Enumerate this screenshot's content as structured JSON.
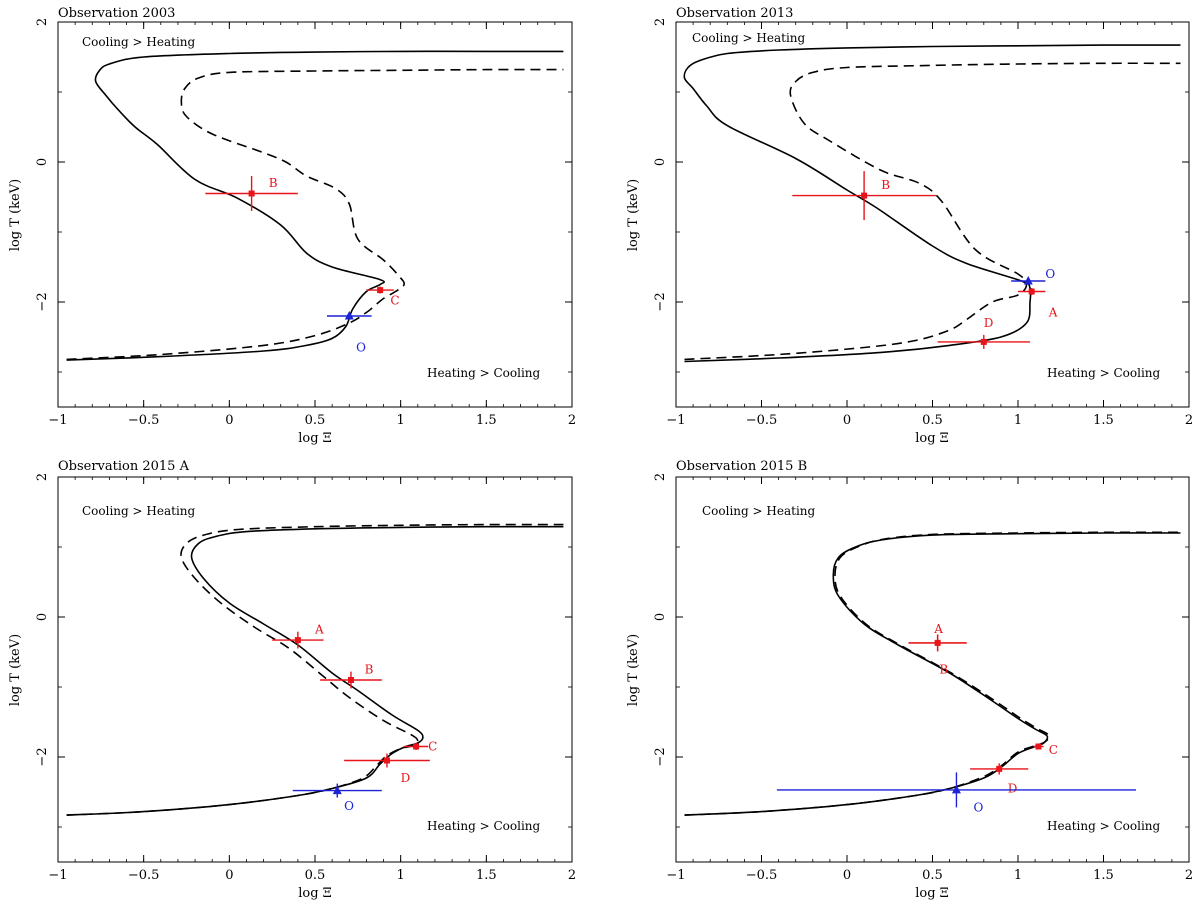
{
  "chart_data": [
    {
      "type": "line",
      "title": "Observation 2003",
      "xlabel": "log Ξ",
      "ylabel": "log T (keV)",
      "xlim": [
        -1,
        2
      ],
      "ylim": [
        -3.5,
        2
      ],
      "xticks": [
        "−1",
        "−0.5",
        "0",
        "0.5",
        "1",
        "1.5",
        "2"
      ],
      "yticks": [
        "−2",
        "0",
        "2"
      ],
      "annotations": {
        "top": "Cooling > Heating",
        "bottom": "Heating > Cooling"
      },
      "series": [
        {
          "name": "solid",
          "style": "solid",
          "x": [
            -0.95,
            -0.4,
            0.2,
            0.45,
            0.6,
            0.68,
            0.72,
            0.8,
            0.88,
            0.88,
            0.6,
            0.45,
            0.3,
            0.05,
            -0.2,
            -0.42,
            -0.55,
            -0.65,
            -0.72,
            -0.78,
            -0.76,
            -0.7,
            -0.5,
            0.0,
            0.5,
            1.0,
            1.5,
            1.95
          ],
          "y": [
            -2.83,
            -2.78,
            -2.7,
            -2.62,
            -2.52,
            -2.35,
            -2.1,
            -1.85,
            -1.75,
            -1.68,
            -1.5,
            -1.3,
            -0.9,
            -0.52,
            -0.25,
            0.25,
            0.5,
            0.75,
            0.95,
            1.15,
            1.3,
            1.4,
            1.5,
            1.55,
            1.57,
            1.58,
            1.58,
            1.58
          ]
        },
        {
          "name": "dashed",
          "style": "dashed",
          "x": [
            -0.95,
            -0.4,
            0.2,
            0.5,
            0.7,
            0.8,
            0.85,
            0.9,
            0.97,
            1.02,
            0.99,
            0.9,
            0.75,
            0.7,
            0.62,
            0.45,
            0.33,
            0.18,
            -0.1,
            -0.25,
            -0.28,
            -0.26,
            -0.18,
            0.0,
            0.5,
            1.0,
            1.5,
            1.95
          ],
          "y": [
            -2.82,
            -2.75,
            -2.62,
            -2.48,
            -2.3,
            -2.15,
            -2.05,
            -1.95,
            -1.85,
            -1.75,
            -1.63,
            -1.4,
            -1.1,
            -0.6,
            -0.38,
            -0.2,
            0.0,
            0.15,
            0.4,
            0.65,
            0.85,
            1.05,
            1.2,
            1.28,
            1.3,
            1.31,
            1.32,
            1.32
          ]
        }
      ],
      "points": [
        {
          "label": "B",
          "x": 0.13,
          "y": -0.45,
          "xerr": [
            0.27,
            0.27
          ],
          "yerr": [
            0.25,
            0.25
          ],
          "color": "#e8141a",
          "marker": "square",
          "label_dx": 0.1,
          "label_dy": 0.15
        },
        {
          "label": "C",
          "x": 0.88,
          "y": -1.83,
          "xerr": [
            0.08,
            0.08
          ],
          "yerr": [
            0.05,
            0.05
          ],
          "color": "#e8141a",
          "marker": "square",
          "label_dx": 0.06,
          "label_dy": -0.15
        },
        {
          "label": "O",
          "x": 0.7,
          "y": -2.2,
          "xerr": [
            0.13,
            0.13
          ],
          "yerr": [
            0.05,
            0.05
          ],
          "color": "#1c22d6",
          "marker": "triangle",
          "label_dx": 0.04,
          "label_dy": -0.45
        }
      ]
    },
    {
      "type": "line",
      "title": "Observation 2013",
      "xlabel": "log Ξ",
      "ylabel": "log T (keV)",
      "xlim": [
        -1,
        2
      ],
      "ylim": [
        -3.5,
        2
      ],
      "xticks": [
        "−1",
        "−0.5",
        "0",
        "0.5",
        "1",
        "1.5",
        "2"
      ],
      "yticks": [
        "−2",
        "0",
        "2"
      ],
      "annotations": {
        "top": "Cooling > Heating",
        "bottom": "Heating > Cooling"
      },
      "series": [
        {
          "name": "solid",
          "style": "solid",
          "x": [
            -0.95,
            -0.4,
            0.2,
            0.6,
            0.9,
            1.05,
            1.07,
            1.07,
            1.02,
            0.7,
            0.5,
            0.17,
            0.0,
            -0.3,
            -0.7,
            -0.82,
            -0.9,
            -0.95,
            -0.93,
            -0.86,
            -0.7,
            -0.4,
            0.0,
            0.5,
            1.0,
            1.5,
            1.95
          ],
          "y": [
            -2.85,
            -2.8,
            -2.72,
            -2.62,
            -2.5,
            -2.3,
            -2.0,
            -1.8,
            -1.7,
            -1.45,
            -1.2,
            -0.65,
            -0.4,
            0.05,
            0.52,
            0.8,
            1.05,
            1.2,
            1.35,
            1.45,
            1.55,
            1.6,
            1.63,
            1.65,
            1.66,
            1.67,
            1.67
          ]
        },
        {
          "name": "dashed",
          "style": "dashed",
          "x": [
            -0.95,
            -0.4,
            0.1,
            0.4,
            0.6,
            0.7,
            0.85,
            1.0,
            1.05,
            1.0,
            0.75,
            0.55,
            0.42,
            0.2,
            -0.1,
            -0.25,
            -0.33,
            -0.3,
            -0.2,
            0.0,
            0.5,
            1.0,
            1.5,
            1.95
          ],
          "y": [
            -2.82,
            -2.75,
            -2.65,
            -2.55,
            -2.4,
            -2.25,
            -2.0,
            -1.9,
            -1.75,
            -1.6,
            -1.25,
            -0.55,
            -0.3,
            -0.12,
            0.3,
            0.55,
            0.95,
            1.15,
            1.28,
            1.35,
            1.38,
            1.4,
            1.41,
            1.41
          ]
        }
      ],
      "points": [
        {
          "label": "B",
          "x": 0.1,
          "y": -0.48,
          "xerr": [
            0.42,
            0.42
          ],
          "yerr": [
            0.35,
            0.35
          ],
          "color": "#e8141a",
          "marker": "square",
          "label_dx": 0.1,
          "label_dy": 0.15
        },
        {
          "label": "O",
          "x": 1.06,
          "y": -1.7,
          "xerr": [
            0.1,
            0.1
          ],
          "yerr": [
            0.05,
            0.05
          ],
          "color": "#1c22d6",
          "marker": "triangle",
          "label_dx": 0.1,
          "label_dy": 0.1
        },
        {
          "label": "A",
          "x": 1.08,
          "y": -1.85,
          "xerr": [
            0.08,
            0.08
          ],
          "yerr": [
            0.05,
            0.05
          ],
          "color": "#e8141a",
          "marker": "square",
          "label_dx": 0.1,
          "label_dy": -0.3
        },
        {
          "label": "D",
          "x": 0.8,
          "y": -2.57,
          "xerr": [
            0.27,
            0.27
          ],
          "yerr": [
            0.1,
            0.1
          ],
          "color": "#e8141a",
          "marker": "square",
          "label_dx": 0.0,
          "label_dy": 0.27
        }
      ]
    },
    {
      "type": "line",
      "title": "Observation 2015 A",
      "xlabel": "log Ξ",
      "ylabel": "log T (keV)",
      "xlim": [
        -1,
        2
      ],
      "ylim": [
        -3.5,
        2
      ],
      "xticks": [
        "−1",
        "−0.5",
        "0",
        "0.5",
        "1",
        "1.5",
        "2"
      ],
      "yticks": [
        "−2",
        "0",
        "2"
      ],
      "annotations": {
        "top": "Cooling > Heating",
        "bottom": "Heating > Cooling"
      },
      "series": [
        {
          "name": "solid",
          "style": "solid",
          "x": [
            -0.95,
            -0.5,
            0.0,
            0.4,
            0.6,
            0.8,
            0.88,
            0.95,
            1.03,
            1.1,
            1.13,
            1.1,
            0.95,
            0.75,
            0.6,
            0.4,
            0.2,
            0.0,
            -0.15,
            -0.22,
            -0.18,
            -0.08,
            0.1,
            0.5,
            1.0,
            1.5,
            1.95
          ],
          "y": [
            -2.83,
            -2.78,
            -2.68,
            -2.55,
            -2.45,
            -2.3,
            -2.1,
            -1.95,
            -1.85,
            -1.8,
            -1.72,
            -1.62,
            -1.4,
            -1.05,
            -0.8,
            -0.4,
            -0.1,
            0.2,
            0.55,
            0.85,
            1.05,
            1.15,
            1.22,
            1.26,
            1.28,
            1.29,
            1.29
          ]
        },
        {
          "name": "dashed",
          "style": "dashed",
          "x": [
            -0.95,
            -0.5,
            0.0,
            0.4,
            0.6,
            0.78,
            0.86,
            0.92,
            1.0,
            1.07,
            1.1,
            1.06,
            0.9,
            0.7,
            0.55,
            0.35,
            0.15,
            -0.05,
            -0.2,
            -0.28,
            -0.25,
            -0.15,
            0.05,
            0.5,
            1.0,
            1.5,
            1.95
          ],
          "y": [
            -2.83,
            -2.78,
            -2.68,
            -2.55,
            -2.45,
            -2.3,
            -2.12,
            -1.98,
            -1.88,
            -1.84,
            -1.77,
            -1.68,
            -1.48,
            -1.15,
            -0.85,
            -0.45,
            -0.15,
            0.2,
            0.55,
            0.85,
            1.05,
            1.17,
            1.25,
            1.29,
            1.31,
            1.32,
            1.32
          ]
        }
      ],
      "points": [
        {
          "label": "A",
          "x": 0.4,
          "y": -0.33,
          "xerr": [
            0.15,
            0.15
          ],
          "yerr": [
            0.12,
            0.12
          ],
          "color": "#e8141a",
          "marker": "square",
          "label_dx": 0.1,
          "label_dy": 0.15
        },
        {
          "label": "B",
          "x": 0.71,
          "y": -0.9,
          "xerr": [
            0.18,
            0.18
          ],
          "yerr": [
            0.12,
            0.12
          ],
          "color": "#e8141a",
          "marker": "square",
          "label_dx": 0.08,
          "label_dy": 0.15
        },
        {
          "label": "C",
          "x": 1.09,
          "y": -1.85,
          "xerr": [
            0.07,
            0.07
          ],
          "yerr": [
            0.05,
            0.05
          ],
          "color": "#e8141a",
          "marker": "square",
          "label_dx": 0.07,
          "label_dy": 0.0
        },
        {
          "label": "D",
          "x": 0.92,
          "y": -2.05,
          "xerr": [
            0.25,
            0.25
          ],
          "yerr": [
            0.1,
            0.1
          ],
          "color": "#e8141a",
          "marker": "square",
          "label_dx": 0.08,
          "label_dy": -0.25
        },
        {
          "label": "O",
          "x": 0.63,
          "y": -2.48,
          "xerr": [
            0.26,
            0.26
          ],
          "yerr": [
            0.1,
            0.1
          ],
          "color": "#1c22d6",
          "marker": "triangle",
          "label_dx": 0.04,
          "label_dy": -0.22
        }
      ]
    },
    {
      "type": "line",
      "title": "Observation 2015 B",
      "xlabel": "log Ξ",
      "ylabel": "log T (keV)",
      "xlim": [
        -1,
        2
      ],
      "ylim": [
        -3.5,
        2
      ],
      "xticks": [
        "−1",
        "−0.5",
        "0",
        "0.5",
        "1",
        "1.5",
        "2"
      ],
      "yticks": [
        "−2",
        "0",
        "2"
      ],
      "annotations": {
        "top": "Cooling > Heating",
        "bottom": "Heating > Cooling"
      },
      "series": [
        {
          "name": "solid",
          "style": "solid",
          "x": [
            -0.95,
            -0.5,
            0.0,
            0.4,
            0.6,
            0.8,
            0.9,
            1.0,
            1.1,
            1.15,
            1.17,
            1.1,
            1.0,
            0.85,
            0.6,
            0.3,
            0.1,
            -0.05,
            -0.08,
            -0.05,
            0.05,
            0.2,
            0.5,
            1.0,
            1.5,
            1.95
          ],
          "y": [
            -2.83,
            -2.78,
            -2.68,
            -2.55,
            -2.45,
            -2.3,
            -2.15,
            -1.95,
            -1.85,
            -1.8,
            -1.7,
            -1.6,
            -1.45,
            -1.2,
            -0.8,
            -0.4,
            -0.1,
            0.3,
            0.6,
            0.85,
            1.0,
            1.1,
            1.17,
            1.19,
            1.2,
            1.2
          ]
        },
        {
          "name": "dashed",
          "style": "dashed",
          "x": [
            -0.95,
            -0.5,
            0.0,
            0.4,
            0.6,
            0.8,
            0.9,
            1.0,
            1.1,
            1.16,
            1.18,
            1.11,
            1.01,
            0.86,
            0.61,
            0.31,
            0.11,
            -0.04,
            -0.07,
            -0.04,
            0.06,
            0.21,
            0.5,
            1.0,
            1.5,
            1.95
          ],
          "y": [
            -2.83,
            -2.78,
            -2.68,
            -2.55,
            -2.45,
            -2.28,
            -2.13,
            -1.93,
            -1.84,
            -1.78,
            -1.69,
            -1.59,
            -1.44,
            -1.19,
            -0.8,
            -0.4,
            -0.1,
            0.3,
            0.6,
            0.85,
            1.0,
            1.11,
            1.18,
            1.2,
            1.21,
            1.21
          ]
        }
      ],
      "points": [
        {
          "label": "A",
          "x": 0.53,
          "y": -0.37,
          "xerr": [
            0.17,
            0.17
          ],
          "yerr": [
            0.12,
            0.12
          ],
          "color": "#e8141a",
          "marker": "square",
          "label_dx": -0.02,
          "label_dy": 0.2
        },
        {
          "label": "B",
          "x": 0.53,
          "y": -0.37,
          "xerr": [
            0.17,
            0.17
          ],
          "yerr": [
            0.12,
            0.12
          ],
          "color": "#e8141a",
          "marker": "none",
          "label_dx": 0.01,
          "label_dy": -0.38
        },
        {
          "label": "C",
          "x": 1.12,
          "y": -1.85,
          "xerr": [
            0.03,
            0.03
          ],
          "yerr": [
            0.03,
            0.03
          ],
          "color": "#e8141a",
          "marker": "square",
          "label_dx": 0.06,
          "label_dy": -0.05
        },
        {
          "label": "D",
          "x": 0.89,
          "y": -2.17,
          "xerr": [
            0.17,
            0.17
          ],
          "yerr": [
            0.08,
            0.08
          ],
          "color": "#e8141a",
          "marker": "square",
          "label_dx": 0.05,
          "label_dy": -0.28
        },
        {
          "label": "O",
          "x": 0.64,
          "y": -2.47,
          "xerr": [
            1.05,
            1.05
          ],
          "yerr": [
            0.25,
            0.25
          ],
          "color": "#1c22d6",
          "marker": "triangle",
          "label_dx": 0.1,
          "label_dy": -0.25
        }
      ]
    }
  ]
}
